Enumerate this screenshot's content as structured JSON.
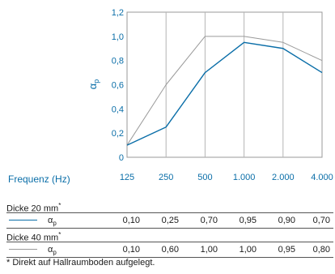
{
  "chart_data": {
    "type": "line",
    "x_categories": [
      "125",
      "250",
      "500",
      "1.000",
      "2.000",
      "4.000"
    ],
    "y_ticks": [
      "0",
      "0,2",
      "0,4",
      "0,6",
      "0,8",
      "1,0",
      "1,2"
    ],
    "ylim": [
      0,
      1.2
    ],
    "ylabel": "α",
    "ylabel_sub": "p",
    "xlabel": "Frequenz (Hz)",
    "grid": "vertical",
    "series": [
      {
        "name": "Dicke 20 mm",
        "color": "#0a6ea8",
        "values": [
          0.1,
          0.25,
          0.7,
          0.95,
          0.9,
          0.7
        ]
      },
      {
        "name": "Dicke 40 mm",
        "color": "#9a9a9a",
        "values": [
          0.1,
          0.6,
          1.0,
          1.0,
          0.95,
          0.8
        ]
      }
    ]
  },
  "table": {
    "sections": [
      {
        "title": "Dicke 20 mm",
        "mark": "*",
        "row_label": "α",
        "row_label_sub": "p",
        "values": [
          "0,10",
          "0,25",
          "0,70",
          "0,95",
          "0,90",
          "0,70"
        ]
      },
      {
        "title": "Dicke 40 mm",
        "mark": "*",
        "row_label": "α",
        "row_label_sub": "p",
        "values": [
          "0,10",
          "0,60",
          "1,00",
          "1,00",
          "0,95",
          "0,80"
        ]
      }
    ]
  },
  "footnote": "* Direkt auf Hallraumboden aufgelegt."
}
